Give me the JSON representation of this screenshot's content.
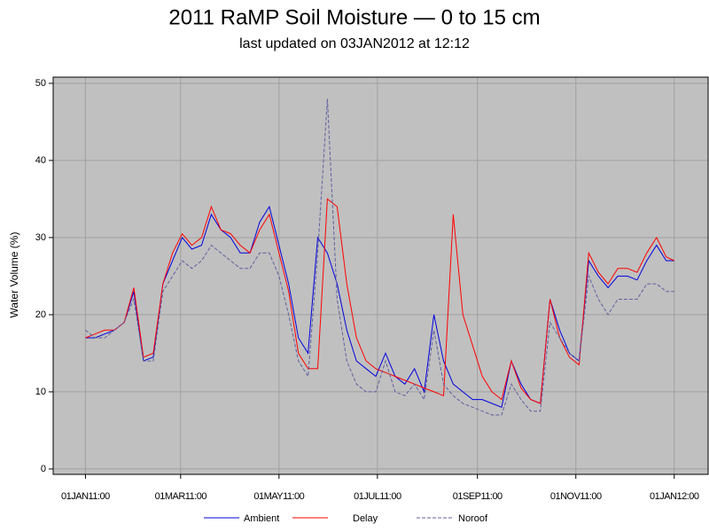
{
  "chart_data": {
    "type": "line",
    "title": "2011 RaMP Soil Moisture — 0 to 15 cm",
    "subtitle": "last updated on 03JAN2012 at 12:12",
    "y_label": "Water Volume (%)",
    "x": [
      "2011-01-01",
      "2011-01-07",
      "2011-01-13",
      "2011-01-19",
      "2011-01-25",
      "2011-01-31",
      "2011-02-06",
      "2011-02-12",
      "2011-02-18",
      "2011-02-24",
      "2011-03-02",
      "2011-03-08",
      "2011-03-14",
      "2011-03-20",
      "2011-03-26",
      "2011-04-01",
      "2011-04-07",
      "2011-04-13",
      "2011-04-19",
      "2011-04-25",
      "2011-05-01",
      "2011-05-07",
      "2011-05-13",
      "2011-05-19",
      "2011-05-25",
      "2011-05-31",
      "2011-06-06",
      "2011-06-12",
      "2011-06-18",
      "2011-06-24",
      "2011-06-30",
      "2011-07-06",
      "2011-07-12",
      "2011-07-18",
      "2011-07-24",
      "2011-07-30",
      "2011-08-05",
      "2011-08-11",
      "2011-08-17",
      "2011-08-23",
      "2011-08-29",
      "2011-09-04",
      "2011-09-10",
      "2011-09-16",
      "2011-09-22",
      "2011-09-28",
      "2011-10-04",
      "2011-10-10",
      "2011-10-16",
      "2011-10-22",
      "2011-10-28",
      "2011-11-03",
      "2011-11-09",
      "2011-11-15",
      "2011-11-21",
      "2011-11-27",
      "2011-12-03",
      "2011-12-09",
      "2011-12-15",
      "2011-12-21",
      "2011-12-27",
      "2012-01-01"
    ],
    "series": [
      {
        "name": "Ambient",
        "color": "#0000dd",
        "dashed": false,
        "values": [
          17,
          17,
          17.5,
          18,
          19,
          23,
          14,
          14.5,
          24,
          27,
          30,
          28.5,
          29,
          33,
          31,
          30,
          28,
          28,
          32,
          34,
          29,
          24,
          17,
          15,
          30,
          28,
          24,
          18,
          14,
          13,
          12,
          15,
          12,
          11,
          13,
          10,
          20,
          14,
          11,
          10,
          9,
          9,
          8.5,
          8,
          14,
          11,
          9,
          8.5,
          22,
          18,
          15,
          14,
          27,
          25,
          23.5,
          25,
          25,
          24.5,
          27,
          29,
          27,
          27
        ]
      },
      {
        "name": "Delay",
        "color": "#ff0000",
        "dashed": false,
        "values": [
          17,
          17.5,
          18,
          18,
          19,
          23.5,
          14.5,
          15,
          24,
          28,
          30.5,
          29,
          30,
          34,
          31,
          30.5,
          29,
          28,
          31,
          33,
          28,
          23,
          15,
          13,
          13,
          35,
          34,
          24,
          17,
          14,
          13,
          12.5,
          12,
          11.5,
          11,
          10.5,
          10,
          9.5,
          33,
          20,
          16,
          12,
          10,
          9,
          14,
          10.5,
          9,
          8.5,
          22,
          17,
          14.5,
          13.5,
          28,
          25.5,
          24,
          26,
          26,
          25.5,
          28,
          30,
          27.5,
          27
        ]
      },
      {
        "name": "Noroof",
        "color": "#6060a0",
        "dashed": true,
        "values": [
          18,
          17,
          17,
          18,
          19,
          22,
          14,
          14,
          23,
          25,
          27,
          26,
          27,
          29,
          28,
          27,
          26,
          26,
          28,
          28,
          25,
          20,
          14,
          12,
          28,
          48,
          22,
          14,
          11,
          10,
          10,
          14,
          10,
          9.5,
          11,
          9,
          18,
          11,
          9.5,
          8.5,
          8,
          7.5,
          7,
          7,
          11,
          9,
          7.5,
          7.5,
          19,
          17,
          15,
          14,
          25,
          22,
          20,
          22,
          22,
          22,
          24,
          24,
          23,
          23
        ]
      }
    ],
    "xlim": [
      "2010-12-12",
      "2012-01-22"
    ],
    "xticks": [
      {
        "value": "2011-01-01",
        "label": "01JAN11:00"
      },
      {
        "value": "2011-03-01",
        "label": "01MAR11:00"
      },
      {
        "value": "2011-05-01",
        "label": "01MAY11:00"
      },
      {
        "value": "2011-07-01",
        "label": "01JUL11:00"
      },
      {
        "value": "2011-09-01",
        "label": "01SEP11:00"
      },
      {
        "value": "2011-11-01",
        "label": "01NOV11:00"
      },
      {
        "value": "2012-01-01",
        "label": "01JAN12:00"
      }
    ],
    "ylim": [
      -0.7,
      50.8
    ],
    "yticks": [
      0,
      10,
      20,
      30,
      40,
      50
    ],
    "grid": true,
    "legend": "bottom"
  }
}
